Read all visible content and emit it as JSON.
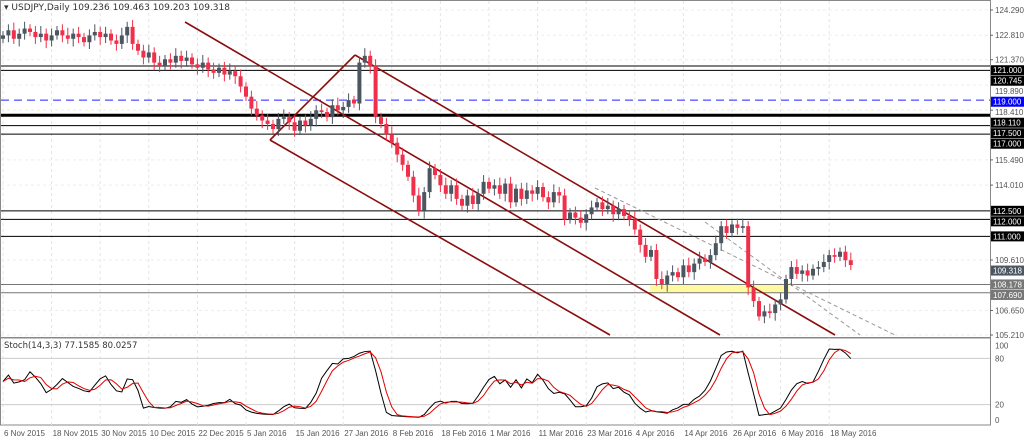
{
  "header": {
    "symbol": "USDJPY,Daily",
    "ohlc": "109.236 109.463 109.203 109.318"
  },
  "indicator": {
    "label": "Stoch(14,3,3) 77.1585 80.0257"
  },
  "colors": {
    "bull": "#4b5661",
    "bear": "#f0304a",
    "channel": "#8b0d0d",
    "level": "#000000",
    "level_dashed": "#2222ff",
    "zone": "#fffaa0",
    "stoch_main": "#000000",
    "stoch_signal": "#e00000"
  },
  "chart_data": {
    "type": "candlestick",
    "ylim": [
      105.21,
      124.29
    ],
    "y_ticks": [
      "124.290",
      "122.810",
      "121.370",
      "119.890",
      "118.410",
      "115.490",
      "114.010",
      "109.610",
      "106.650",
      "105.210"
    ],
    "x_ticks": [
      {
        "label": "6 Nov 2015",
        "i": 0
      },
      {
        "label": "18 Nov 2015",
        "i": 9
      },
      {
        "label": "30 Nov 2015",
        "i": 18
      },
      {
        "label": "10 Dec 2015",
        "i": 27
      },
      {
        "label": "22 Dec 2015",
        "i": 36
      },
      {
        "label": "5 Jan 2016",
        "i": 45
      },
      {
        "label": "15 Jan 2016",
        "i": 54
      },
      {
        "label": "27 Jan 2016",
        "i": 63
      },
      {
        "label": "8 Feb 2016",
        "i": 72
      },
      {
        "label": "18 Feb 2016",
        "i": 81
      },
      {
        "label": "1 Mar 2016",
        "i": 90
      },
      {
        "label": "11 Mar 2016",
        "i": 99
      },
      {
        "label": "23 Mar 2016",
        "i": 108
      },
      {
        "label": "4 Apr 2016",
        "i": 117
      },
      {
        "label": "14 Apr 2016",
        "i": 126
      },
      {
        "label": "26 Apr 2016",
        "i": 135
      },
      {
        "label": "6 May 2016",
        "i": 144
      },
      {
        "label": "18 May 2016",
        "i": 153
      }
    ],
    "closes": [
      122.8,
      123.1,
      122.6,
      122.9,
      123.2,
      123.0,
      122.7,
      122.9,
      122.5,
      122.8,
      123.1,
      122.8,
      122.6,
      122.9,
      122.7,
      122.4,
      122.8,
      123.0,
      122.7,
      122.9,
      122.5,
      122.3,
      122.8,
      123.3,
      122.3,
      121.9,
      121.5,
      121.8,
      121.2,
      121.0,
      121.4,
      121.2,
      121.6,
      121.3,
      121.5,
      121.1,
      120.9,
      121.2,
      120.8,
      120.6,
      120.9,
      120.5,
      120.7,
      120.4,
      119.8,
      119.2,
      118.5,
      118.1,
      117.8,
      117.6,
      117.3,
      117.9,
      118.0,
      117.7,
      117.2,
      117.8,
      117.5,
      117.9,
      118.4,
      118.3,
      118.0,
      118.7,
      118.4,
      118.6,
      119.0,
      118.8,
      121.2,
      121.6,
      121.0,
      118.0,
      117.6,
      117.0,
      116.5,
      115.8,
      115.2,
      114.5,
      113.4,
      112.5,
      113.6,
      115.0,
      114.6,
      114.0,
      113.5,
      114.0,
      113.2,
      112.8,
      113.4,
      112.9,
      113.5,
      114.2,
      113.8,
      114.0,
      113.5,
      114.1,
      113.0,
      113.8,
      113.2,
      113.7,
      113.5,
      113.9,
      113.3,
      113.0,
      113.6,
      113.4,
      112.0,
      112.4,
      112.1,
      111.8,
      112.3,
      112.7,
      113.0,
      112.6,
      112.8,
      112.3,
      112.6,
      112.2,
      112.0,
      111.4,
      110.5,
      109.8,
      110.2,
      108.5,
      108.2,
      108.7,
      108.9,
      108.6,
      109.3,
      108.9,
      109.4,
      109.7,
      109.5,
      109.9,
      110.6,
      111.6,
      111.2,
      111.7,
      111.5,
      111.6,
      108.0,
      107.2,
      106.3,
      106.6,
      106.5,
      107.0,
      107.3,
      108.5,
      109.2,
      108.8,
      109.0,
      108.7,
      109.1,
      109.2,
      109.5,
      109.9,
      109.8,
      110.1,
      109.6,
      109.318
    ],
    "levels": [
      {
        "price": 121.0,
        "label": "121.000",
        "style": "solid"
      },
      {
        "price": 120.745,
        "label": "120.745",
        "style": "solid"
      },
      {
        "price": 119.0,
        "label": "119.000",
        "style": "dashed"
      },
      {
        "price": 118.11,
        "label": "118.110",
        "style": "thick"
      },
      {
        "price": 117.5,
        "label": "117.500",
        "style": "solid"
      },
      {
        "price": 117.0,
        "label": "117.000",
        "style": "solid"
      },
      {
        "price": 112.5,
        "label": "112.500",
        "style": "solid"
      },
      {
        "price": 112.0,
        "label": "112.000",
        "style": "solid"
      },
      {
        "price": 111.0,
        "label": "111.000",
        "style": "solid"
      },
      {
        "price": 108.178,
        "label": "108.178",
        "style": "grey"
      },
      {
        "price": 107.69,
        "label": "107.690",
        "style": "grey"
      }
    ],
    "current_price": {
      "price": 109.318,
      "label": "109.318"
    },
    "stochastic": {
      "params": [
        14,
        3,
        3
      ],
      "ylim": [
        0,
        100
      ],
      "levels": [
        80,
        20
      ],
      "axis_labels": [
        "100",
        "80",
        "20",
        "0"
      ]
    }
  }
}
